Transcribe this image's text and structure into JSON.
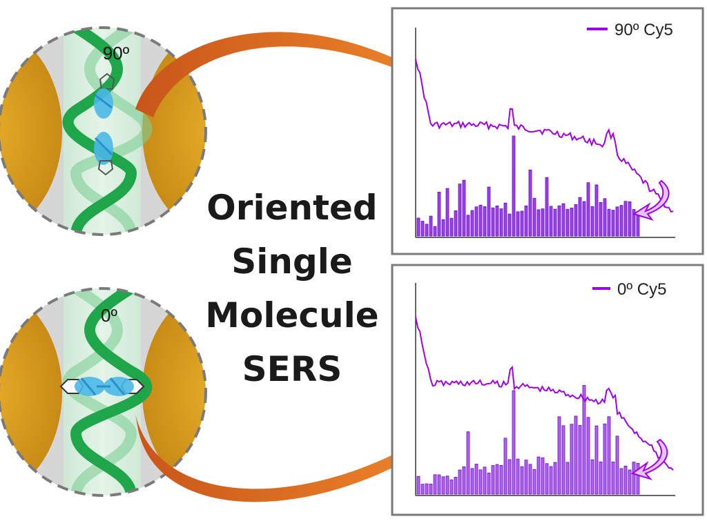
{
  "title_lines": [
    "Oriented",
    "Single",
    "Molecule",
    "SERS"
  ],
  "panels": [
    {
      "id": "top",
      "angle_label": "90º",
      "legend": "90º Cy5"
    },
    {
      "id": "bottom",
      "angle_label": "0º",
      "legend": "0º Cy5"
    }
  ],
  "colors": {
    "spectrum": "#a000e8",
    "bar_fill": "#8b20e0",
    "arrow": "#e0701e",
    "gold": "#d99a1c",
    "dna": "#1fa64a",
    "dye": "#4ab8e8"
  }
}
